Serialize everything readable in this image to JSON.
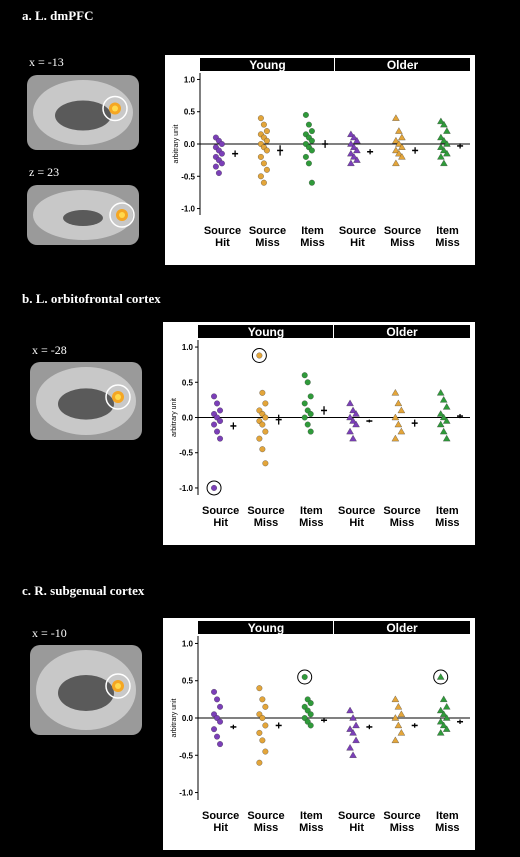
{
  "chart_data": [
    {
      "type": "strip",
      "title": "a. L. dmPFC",
      "slices": [
        "x = -13",
        "z = 23"
      ],
      "ylabel": "arbitrary unit",
      "categories": [
        "Source Hit",
        "Source Miss",
        "Item Miss"
      ],
      "colors": [
        "#7b3fb8",
        "#e3a53a",
        "#2f9a3a"
      ],
      "ylim": [
        -1.1,
        1.1
      ],
      "yticks": [
        {
          "value": 1,
          "label": "1.0"
        },
        {
          "value": 0.5,
          "label": "0.5"
        },
        {
          "value": 0,
          "label": "0.0"
        },
        {
          "value": -0.5,
          "label": "-0.5"
        },
        {
          "value": -1,
          "label": "-1.0"
        }
      ],
      "groups": [
        {
          "name": "Young",
          "marker": "circle",
          "points": [
            [
              0.1,
              0.05,
              0,
              -0.05,
              -0.1,
              -0.15,
              -0.2,
              -0.25,
              -0.3,
              -0.35,
              -0.45
            ],
            [
              0.4,
              0.3,
              0.2,
              0.15,
              0.1,
              0.05,
              0,
              -0.05,
              -0.1,
              -0.2,
              -0.3,
              -0.4,
              -0.5,
              -0.6
            ],
            [
              0.45,
              0.3,
              0.2,
              0.15,
              0.1,
              0.05,
              0,
              -0.05,
              -0.1,
              -0.2,
              -0.3,
              -0.6
            ]
          ],
          "means": [
            -0.15,
            -0.1,
            0
          ],
          "errors": [
            0.05,
            0.08,
            0.06
          ],
          "circled": [
            null,
            null,
            null
          ]
        },
        {
          "name": "Older",
          "marker": "triangle",
          "points": [
            [
              0.15,
              0.1,
              0.05,
              0,
              -0.05,
              -0.1,
              -0.15,
              -0.2,
              -0.25,
              -0.3
            ],
            [
              0.4,
              0.2,
              0.1,
              0.05,
              0,
              -0.05,
              -0.1,
              -0.15,
              -0.2,
              -0.3
            ],
            [
              0.35,
              0.3,
              0.2,
              0.1,
              0.05,
              0,
              -0.05,
              -0.1,
              -0.15,
              -0.2,
              -0.3
            ]
          ],
          "means": [
            -0.12,
            -0.1,
            -0.03
          ],
          "errors": [
            0.04,
            0.05,
            0.04
          ],
          "circled": [
            null,
            null,
            null
          ]
        }
      ]
    },
    {
      "type": "strip",
      "title": "b. L. orbitofrontal cortex",
      "slices": [
        "x = -28"
      ],
      "ylabel": "arbitrary unit",
      "categories": [
        "Source Hit",
        "Source Miss",
        "Item Miss"
      ],
      "colors": [
        "#7b3fb8",
        "#e3a53a",
        "#2f9a3a"
      ],
      "ylim": [
        -1.1,
        1.1
      ],
      "yticks": [
        {
          "value": 1,
          "label": "1.0"
        },
        {
          "value": 0.5,
          "label": "0.5"
        },
        {
          "value": 0,
          "label": "0.0"
        },
        {
          "value": -0.5,
          "label": "-0.5"
        },
        {
          "value": -1,
          "label": "-1.0"
        }
      ],
      "groups": [
        {
          "name": "Young",
          "marker": "circle",
          "points": [
            [
              0.3,
              0.2,
              0.1,
              0.05,
              0,
              -0.05,
              -0.1,
              -0.2,
              -0.3,
              -1.0
            ],
            [
              0.88,
              0.35,
              0.2,
              0.1,
              0.05,
              0,
              -0.05,
              -0.1,
              -0.2,
              -0.3,
              -0.45,
              -0.65
            ],
            [
              0.6,
              0.5,
              0.3,
              0.2,
              0.1,
              0.05,
              0,
              -0.1,
              -0.2
            ]
          ],
          "means": [
            -0.12,
            -0.03,
            0.1
          ],
          "errors": [
            0.05,
            0.07,
            0.06
          ],
          "circled": [
            9,
            0,
            null
          ]
        },
        {
          "name": "Older",
          "marker": "triangle",
          "points": [
            [
              0.2,
              0.1,
              0.05,
              0,
              -0.05,
              -0.1,
              -0.2,
              -0.3
            ],
            [
              0.35,
              0.2,
              0.1,
              0,
              -0.1,
              -0.2,
              -0.3
            ],
            [
              0.35,
              0.25,
              0.15,
              0.05,
              0,
              -0.05,
              -0.1,
              -0.2,
              -0.3
            ]
          ],
          "means": [
            -0.05,
            -0.08,
            0.02
          ],
          "errors": [
            0.02,
            0.05,
            0.03
          ],
          "circled": [
            null,
            null,
            null
          ]
        }
      ]
    },
    {
      "type": "strip",
      "title": "c. R. subgenual cortex",
      "slices": [
        "x = -10"
      ],
      "ylabel": "arbitrary unit",
      "categories": [
        "Source Hit",
        "Source Miss",
        "Item Miss"
      ],
      "colors": [
        "#7b3fb8",
        "#e3a53a",
        "#2f9a3a"
      ],
      "ylim": [
        -1.1,
        1.1
      ],
      "yticks": [
        {
          "value": 1,
          "label": "1.0"
        },
        {
          "value": 0.5,
          "label": "0.5"
        },
        {
          "value": 0,
          "label": "0.0"
        },
        {
          "value": -0.5,
          "label": "-0.5"
        },
        {
          "value": -1,
          "label": "-1.0"
        }
      ],
      "groups": [
        {
          "name": "Young",
          "marker": "circle",
          "points": [
            [
              0.35,
              0.25,
              0.15,
              0.05,
              0,
              -0.05,
              -0.15,
              -0.25,
              -0.35
            ],
            [
              0.4,
              0.25,
              0.15,
              0.05,
              0,
              -0.1,
              -0.2,
              -0.3,
              -0.45,
              -0.6
            ],
            [
              0.55,
              0.25,
              0.2,
              0.15,
              0.1,
              0.05,
              0,
              -0.05,
              -0.1
            ]
          ],
          "means": [
            -0.12,
            -0.1,
            -0.03
          ],
          "errors": [
            0.03,
            0.04,
            0.03
          ],
          "circled": [
            null,
            null,
            0
          ]
        },
        {
          "name": "Older",
          "marker": "triangle",
          "points": [
            [
              0.1,
              0,
              -0.1,
              -0.15,
              -0.2,
              -0.3,
              -0.4,
              -0.5
            ],
            [
              0.25,
              0.15,
              0.05,
              0,
              -0.1,
              -0.2,
              -0.3
            ],
            [
              0.55,
              0.25,
              0.15,
              0.1,
              0.05,
              0,
              -0.05,
              -0.1,
              -0.15,
              -0.2
            ]
          ],
          "means": [
            -0.12,
            -0.1,
            -0.05
          ],
          "errors": [
            0.03,
            0.03,
            0.03
          ],
          "circled": [
            null,
            null,
            0
          ]
        }
      ]
    }
  ]
}
